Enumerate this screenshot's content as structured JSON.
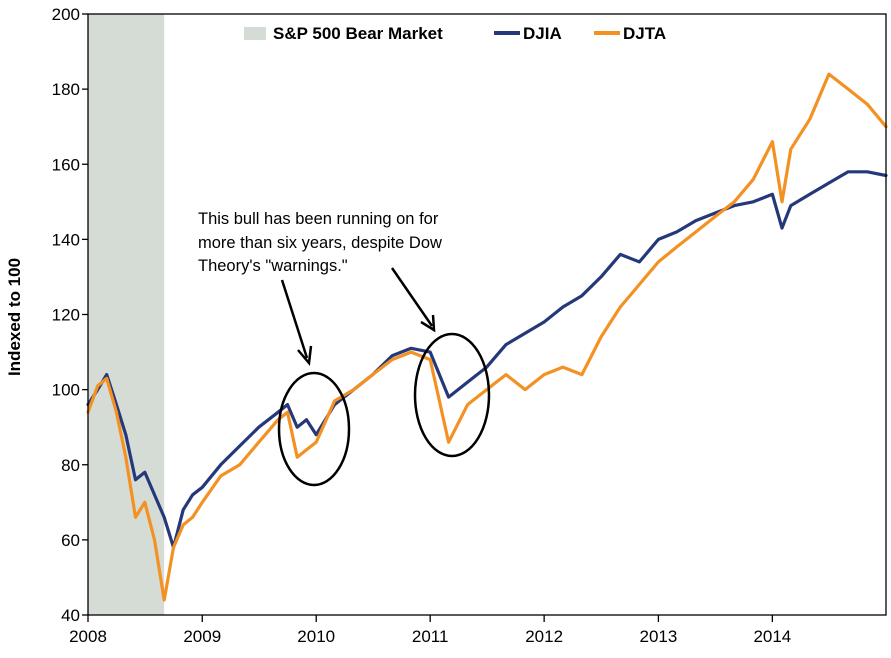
{
  "chart_data": {
    "type": "line",
    "title": "",
    "xlabel": "",
    "ylabel": "Indexed to 100",
    "xlim": [
      "2008-01-01",
      "2014-12-31"
    ],
    "ylim": [
      40,
      200
    ],
    "yticks": [
      40,
      60,
      80,
      100,
      120,
      140,
      160,
      180,
      200
    ],
    "xticks": [
      "2008",
      "2009",
      "2010",
      "2011",
      "2012",
      "2013",
      "2014"
    ],
    "grid": false,
    "legend": "top-center",
    "shaded_region": {
      "name": "S&P 500 Bear Market",
      "start": "2008-01-01",
      "end": "2008-09-01",
      "color": "#D5DCD6"
    },
    "series": [
      {
        "name": "DJIA",
        "color": "#25387A",
        "x": [
          "2008-01-01",
          "2008-02-01",
          "2008-03-01",
          "2008-04-01",
          "2008-05-01",
          "2008-06-01",
          "2008-07-01",
          "2008-08-01",
          "2008-09-01",
          "2008-10-01",
          "2008-11-01",
          "2008-12-01",
          "2009-01-01",
          "2009-03-01",
          "2009-05-01",
          "2009-07-01",
          "2009-09-01",
          "2009-10-01",
          "2009-11-01",
          "2009-12-01",
          "2010-01-01",
          "2010-03-01",
          "2010-05-01",
          "2010-07-01",
          "2010-09-01",
          "2010-11-01",
          "2011-01-01",
          "2011-03-01",
          "2011-05-01",
          "2011-07-01",
          "2011-09-01",
          "2011-11-01",
          "2012-01-01",
          "2012-03-01",
          "2012-05-01",
          "2012-07-01",
          "2012-09-01",
          "2012-11-01",
          "2013-01-01",
          "2013-03-01",
          "2013-05-01",
          "2013-07-01",
          "2013-09-01",
          "2013-11-01",
          "2014-01-01",
          "2014-02-01",
          "2014-03-01",
          "2014-05-01",
          "2014-07-01",
          "2014-09-01",
          "2014-11-01",
          "2014-12-31"
        ],
        "values": [
          96,
          100,
          104,
          96,
          88,
          76,
          78,
          72,
          66,
          58,
          68,
          72,
          74,
          80,
          85,
          90,
          94,
          96,
          90,
          92,
          88,
          96,
          100,
          104,
          109,
          111,
          110,
          98,
          102,
          106,
          112,
          115,
          118,
          122,
          125,
          130,
          136,
          134,
          140,
          142,
          145,
          147,
          149,
          150,
          152,
          143,
          149,
          152,
          155,
          158,
          158,
          157
        ]
      },
      {
        "name": "DJTA",
        "color": "#F39123",
        "x": [
          "2008-01-01",
          "2008-02-01",
          "2008-03-01",
          "2008-04-01",
          "2008-05-01",
          "2008-06-01",
          "2008-07-01",
          "2008-08-01",
          "2008-09-01",
          "2008-10-01",
          "2008-11-01",
          "2008-12-01",
          "2009-01-01",
          "2009-03-01",
          "2009-05-01",
          "2009-07-01",
          "2009-09-01",
          "2009-10-01",
          "2009-11-01",
          "2009-12-01",
          "2010-01-01",
          "2010-03-01",
          "2010-05-01",
          "2010-07-01",
          "2010-09-01",
          "2010-11-01",
          "2011-01-01",
          "2011-03-01",
          "2011-05-01",
          "2011-07-01",
          "2011-09-01",
          "2011-11-01",
          "2012-01-01",
          "2012-03-01",
          "2012-05-01",
          "2012-07-01",
          "2012-09-01",
          "2012-11-01",
          "2013-01-01",
          "2013-03-01",
          "2013-05-01",
          "2013-07-01",
          "2013-09-01",
          "2013-11-01",
          "2014-01-01",
          "2014-02-01",
          "2014-03-01",
          "2014-05-01",
          "2014-07-01",
          "2014-09-01",
          "2014-11-01",
          "2014-12-31"
        ],
        "values": [
          94,
          101,
          103,
          94,
          82,
          66,
          70,
          60,
          44,
          58,
          64,
          66,
          70,
          77,
          80,
          86,
          92,
          94,
          82,
          84,
          86,
          97,
          100,
          104,
          108,
          110,
          108,
          86,
          96,
          100,
          104,
          100,
          104,
          106,
          104,
          114,
          122,
          128,
          134,
          138,
          142,
          146,
          150,
          156,
          166,
          150,
          164,
          172,
          184,
          180,
          176,
          170
        ]
      }
    ],
    "annotation": {
      "lines": [
        "This bull has been running on for",
        "more than six years, despite Dow",
        "Theory's \"warnings.\""
      ]
    }
  }
}
